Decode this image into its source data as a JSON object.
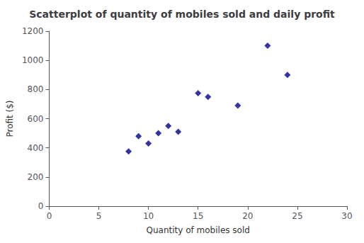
{
  "chart_data": {
    "type": "scatter",
    "title": "Scatterplot of quantity of mobiles sold and daily profit",
    "xlabel": "Quantity of mobiles sold",
    "ylabel": "Profit ($)",
    "x": [
      8,
      9,
      10,
      11,
      12,
      13,
      15,
      16,
      19,
      22,
      24
    ],
    "values": [
      375,
      480,
      430,
      500,
      550,
      510,
      775,
      750,
      690,
      1100,
      900
    ],
    "color": "#00008B",
    "marker": "diamond",
    "xlim": [
      0,
      30
    ],
    "ylim": [
      0,
      1200
    ],
    "xticks": [
      0,
      5,
      10,
      15,
      20,
      25,
      30
    ],
    "yticks": [
      0,
      200,
      400,
      600,
      800,
      1000,
      1200
    ],
    "grid": false
  }
}
